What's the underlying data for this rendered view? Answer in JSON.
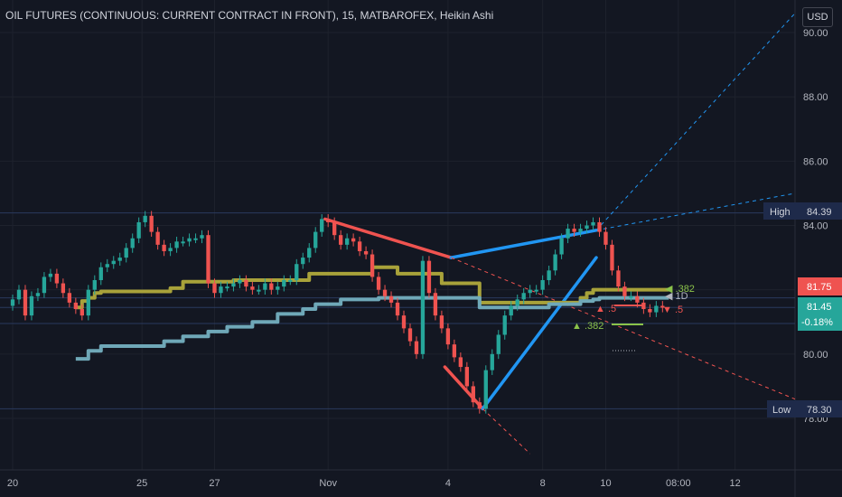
{
  "header": {
    "title": "OIL FUTURES (CONTINUOUS: CURRENT CONTRACT IN FRONT), 15, MATBAROFEX, Heikin Ashi",
    "currency": "USD"
  },
  "colors": {
    "background": "#131722",
    "up": "#26a69a",
    "down": "#ef5350",
    "blue": "#2196f3",
    "olive": "#a8a23a",
    "teal_band": "#6fa8b8",
    "dashed_red": "#ef5350"
  },
  "badges": {
    "high_label": "High",
    "high_value": "84.39",
    "low_label": "Low",
    "low_value": "78.30",
    "price_red": "81.75",
    "price_green": "81.45",
    "change": "-0.18%"
  },
  "fib_labels": {
    "a": "▲ .5",
    "b": "▼ .5",
    "c": "▲ .382",
    "d": "◀ .382",
    "e": "◀ 1D"
  },
  "chart_data": {
    "type": "line",
    "title": "OIL FUTURES (CONTINUOUS: CURRENT CONTRACT IN FRONT), 15, MATBAROFEX, Heikin Ashi",
    "xlabel": "",
    "ylabel": "",
    "ylim": [
      76.9,
      90.6
    ],
    "y_ticks": [
      90,
      88,
      86,
      84,
      82,
      80,
      78
    ],
    "y_tick_labels": [
      "90.00",
      "88.00",
      "86.00",
      "84.00",
      "82.00",
      "80.00",
      "78.00"
    ],
    "x_tick_labels": [
      {
        "label": "20",
        "x": 0
      },
      {
        "label": "25",
        "x": 20.5
      },
      {
        "label": "27",
        "x": 32
      },
      {
        "label": "Nov",
        "x": 50
      },
      {
        "label": "4",
        "x": 69
      },
      {
        "label": "8",
        "x": 84
      },
      {
        "label": "10",
        "x": 94
      },
      {
        "label": "08:00",
        "x": 105.5
      },
      {
        "label": "12",
        "x": 114.5
      }
    ],
    "xlim": [
      0,
      124
    ],
    "grid": true,
    "series": [
      {
        "style": "heikin-ashi",
        "x": [
          0,
          1,
          2,
          3,
          4,
          5,
          6,
          7,
          8,
          9,
          10,
          11,
          12,
          13,
          14,
          15,
          16,
          17,
          18,
          19,
          20,
          21,
          22,
          23,
          24,
          25,
          26,
          27,
          28,
          29,
          30,
          31,
          32,
          33,
          34,
          35,
          36,
          37,
          38,
          39,
          40,
          41,
          42,
          43,
          44,
          45,
          46,
          47,
          48,
          49,
          50,
          51,
          52,
          53,
          54,
          55,
          56,
          57,
          58,
          59,
          60,
          61,
          62,
          63,
          64,
          65,
          66,
          67,
          68,
          69,
          70,
          71,
          72,
          73,
          74,
          75,
          76,
          77,
          78,
          79,
          80,
          81,
          82,
          83,
          84,
          85,
          86,
          87,
          88,
          89,
          90,
          91,
          92,
          93,
          94,
          95,
          96,
          97,
          98,
          99,
          100,
          101,
          102,
          103
        ],
        "values": [
          81.7,
          82.0,
          81.2,
          81.8,
          81.9,
          82.4,
          82.5,
          82.2,
          81.9,
          81.6,
          81.4,
          81.2,
          82.0,
          82.3,
          82.7,
          82.8,
          82.9,
          83.0,
          83.3,
          83.6,
          84.1,
          84.3,
          83.8,
          83.4,
          83.2,
          83.3,
          83.5,
          83.5,
          83.6,
          83.6,
          83.7,
          82.2,
          81.9,
          82.1,
          82.1,
          82.2,
          82.3,
          82.1,
          82.0,
          82.0,
          82.2,
          82.0,
          82.1,
          82.3,
          82.3,
          82.8,
          83.0,
          83.3,
          83.8,
          84.2,
          84.1,
          83.7,
          83.4,
          83.6,
          83.5,
          83.2,
          83.1,
          82.4,
          82.0,
          81.8,
          81.6,
          81.2,
          80.8,
          80.4,
          80.0,
          82.9,
          81.9,
          81.2,
          80.8,
          80.3,
          79.9,
          79.6,
          79.0,
          78.5,
          78.3,
          79.5,
          80.0,
          80.6,
          81.2,
          81.5,
          81.7,
          81.9,
          82.0,
          82.0,
          82.3,
          82.6,
          83.1,
          83.6,
          83.9,
          83.8,
          83.9,
          84.0,
          84.1,
          83.8,
          83.4,
          82.6,
          82.1,
          81.8,
          81.8,
          81.6,
          81.4,
          81.3,
          81.5,
          81.45
        ]
      },
      {
        "name": "",
        "style": "olive-step",
        "x": [
          10,
          11,
          12,
          13,
          14,
          15,
          16,
          17,
          18,
          19,
          20,
          21,
          22,
          23,
          24,
          25,
          26,
          27,
          28,
          29,
          30,
          31,
          32,
          33,
          34,
          35,
          36,
          37,
          38,
          39,
          40,
          41,
          42,
          43,
          44,
          45,
          46,
          47,
          48,
          49,
          50,
          51,
          52,
          53,
          54,
          55,
          56,
          57,
          58,
          59,
          60,
          61,
          62,
          63,
          64,
          65,
          66,
          67,
          68,
          69,
          70,
          71,
          72,
          73,
          74,
          75,
          76,
          77,
          78,
          79,
          80,
          81,
          82,
          83,
          84,
          85,
          86,
          87,
          88,
          89,
          90,
          91,
          92,
          93,
          94,
          95,
          96,
          97,
          98,
          99,
          100,
          101,
          102,
          103
        ],
        "values": [
          81.45,
          81.65,
          81.75,
          81.9,
          81.95,
          81.95,
          81.95,
          81.95,
          81.95,
          81.95,
          81.95,
          81.95,
          81.95,
          81.95,
          81.95,
          82.05,
          82.05,
          82.25,
          82.25,
          82.25,
          82.25,
          82.25,
          82.25,
          82.25,
          82.25,
          82.3,
          82.3,
          82.3,
          82.3,
          82.3,
          82.3,
          82.3,
          82.3,
          82.3,
          82.3,
          82.3,
          82.3,
          82.5,
          82.5,
          82.5,
          82.5,
          82.5,
          82.5,
          82.5,
          82.5,
          82.5,
          82.5,
          82.7,
          82.7,
          82.7,
          82.7,
          82.5,
          82.5,
          82.5,
          82.5,
          82.5,
          82.5,
          82.5,
          82.2,
          82.2,
          82.2,
          82.2,
          82.2,
          82.2,
          81.6,
          81.6,
          81.6,
          81.6,
          81.6,
          81.6,
          81.6,
          81.6,
          81.6,
          81.6,
          81.6,
          81.6,
          81.6,
          81.6,
          81.6,
          81.6,
          81.75,
          81.9,
          82.0,
          82.0,
          82.0,
          82.0,
          82.0,
          82.0,
          82.0,
          82.0,
          82.0,
          82.0,
          82.0,
          82.0
        ]
      },
      {
        "name": "",
        "style": "teal-step",
        "x": [
          10,
          11,
          12,
          13,
          14,
          15,
          16,
          17,
          18,
          19,
          20,
          21,
          22,
          23,
          24,
          25,
          26,
          27,
          28,
          29,
          30,
          31,
          32,
          33,
          34,
          35,
          36,
          37,
          38,
          39,
          40,
          41,
          42,
          43,
          44,
          45,
          46,
          47,
          48,
          49,
          50,
          51,
          52,
          53,
          54,
          55,
          56,
          57,
          58,
          59,
          60,
          61,
          62,
          63,
          64,
          65,
          66,
          67,
          68,
          69,
          70,
          71,
          72,
          73,
          74,
          75,
          76,
          77,
          78,
          79,
          80,
          81,
          82,
          83,
          84,
          85,
          86,
          87,
          88,
          89,
          90,
          91,
          92,
          93,
          94,
          95,
          96,
          97,
          98,
          99,
          100,
          101,
          102,
          103
        ],
        "values": [
          79.85,
          79.85,
          80.1,
          80.1,
          80.25,
          80.25,
          80.25,
          80.25,
          80.25,
          80.25,
          80.25,
          80.25,
          80.25,
          80.25,
          80.4,
          80.4,
          80.4,
          80.55,
          80.55,
          80.55,
          80.55,
          80.7,
          80.7,
          80.7,
          80.85,
          80.85,
          80.85,
          80.85,
          81.0,
          81.0,
          81.0,
          81.0,
          81.25,
          81.25,
          81.25,
          81.25,
          81.4,
          81.4,
          81.55,
          81.55,
          81.55,
          81.55,
          81.7,
          81.7,
          81.7,
          81.7,
          81.7,
          81.7,
          81.75,
          81.75,
          81.75,
          81.75,
          81.75,
          81.75,
          81.75,
          81.75,
          81.75,
          81.75,
          81.75,
          81.75,
          81.75,
          81.75,
          81.75,
          81.75,
          81.45,
          81.45,
          81.45,
          81.45,
          81.45,
          81.45,
          81.45,
          81.45,
          81.45,
          81.45,
          81.45,
          81.55,
          81.55,
          81.55,
          81.55,
          81.55,
          81.65,
          81.65,
          81.7,
          81.75,
          81.75,
          81.75,
          81.75,
          81.75,
          81.75,
          81.75,
          81.75,
          81.75,
          81.75,
          81.75
        ]
      }
    ],
    "drawings": [
      {
        "kind": "segment",
        "color": "red",
        "from": [
          49.5,
          84.2
        ],
        "to": [
          69.5,
          83.0
        ]
      },
      {
        "kind": "segment",
        "color": "blue",
        "from": [
          69.5,
          83.0
        ],
        "to": [
          92.5,
          83.85
        ]
      },
      {
        "kind": "segment",
        "color": "red",
        "from": [
          68.5,
          79.6
        ],
        "to": [
          74.5,
          78.3
        ]
      },
      {
        "kind": "segment",
        "color": "blue",
        "from": [
          74.5,
          78.3
        ],
        "to": [
          92.5,
          83.0
        ]
      },
      {
        "kind": "ray-dashed",
        "color": "red",
        "from": [
          69.5,
          83.0
        ],
        "to": [
          124,
          78.6
        ]
      },
      {
        "kind": "ray-dashed",
        "color": "red",
        "from": [
          74.5,
          78.3
        ],
        "to": [
          82,
          76.9
        ]
      },
      {
        "kind": "ray-dashed",
        "color": "blue",
        "from": [
          92.5,
          83.85
        ],
        "to": [
          124,
          85.0
        ]
      },
      {
        "kind": "ray-dashed",
        "color": "blue",
        "from": [
          92.5,
          83.85
        ],
        "to": [
          124,
          90.6
        ]
      }
    ],
    "horizontal_lines": [
      {
        "y": 84.39,
        "label": "High"
      },
      {
        "y": 78.3,
        "label": "Low"
      },
      {
        "y": 81.75
      },
      {
        "y": 81.45
      },
      {
        "y": 80.95
      }
    ]
  }
}
